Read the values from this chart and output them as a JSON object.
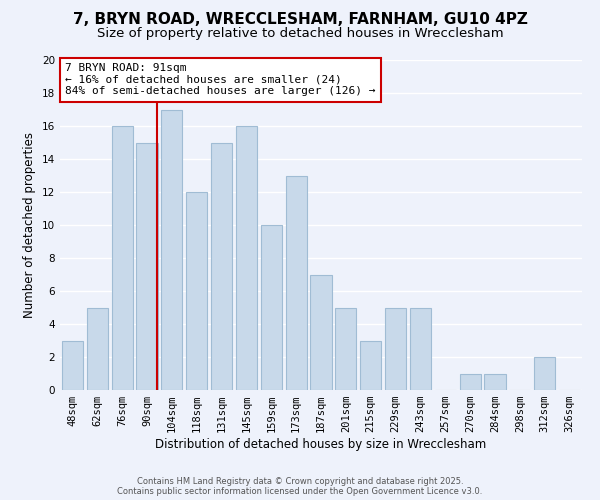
{
  "title": "7, BRYN ROAD, WRECCLESHAM, FARNHAM, GU10 4PZ",
  "subtitle": "Size of property relative to detached houses in Wrecclesham",
  "xlabel": "Distribution of detached houses by size in Wrecclesham",
  "ylabel": "Number of detached properties",
  "bar_color": "#c8d9ea",
  "bar_edge_color": "#a0bcd4",
  "bins": [
    "48sqm",
    "62sqm",
    "76sqm",
    "90sqm",
    "104sqm",
    "118sqm",
    "131sqm",
    "145sqm",
    "159sqm",
    "173sqm",
    "187sqm",
    "201sqm",
    "215sqm",
    "229sqm",
    "243sqm",
    "257sqm",
    "270sqm",
    "284sqm",
    "298sqm",
    "312sqm",
    "326sqm"
  ],
  "values": [
    3,
    5,
    16,
    15,
    17,
    12,
    15,
    16,
    10,
    13,
    7,
    5,
    3,
    5,
    5,
    0,
    1,
    1,
    0,
    2,
    0
  ],
  "marker_label": "7 BRYN ROAD: 91sqm",
  "annotation_line1": "← 16% of detached houses are smaller (24)",
  "annotation_line2": "84% of semi-detached houses are larger (126) →",
  "marker_color": "#cc0000",
  "annotation_box_color": "#ffffff",
  "annotation_box_edge": "#cc0000",
  "ylim": [
    0,
    20
  ],
  "footer1": "Contains HM Land Registry data © Crown copyright and database right 2025.",
  "footer2": "Contains public sector information licensed under the Open Government Licence v3.0.",
  "background_color": "#eef2fb",
  "grid_color": "#ffffff",
  "title_fontsize": 11,
  "subtitle_fontsize": 9.5,
  "axis_label_fontsize": 8.5,
  "tick_fontsize": 7.5,
  "annotation_fontsize": 8,
  "footer_fontsize": 6
}
